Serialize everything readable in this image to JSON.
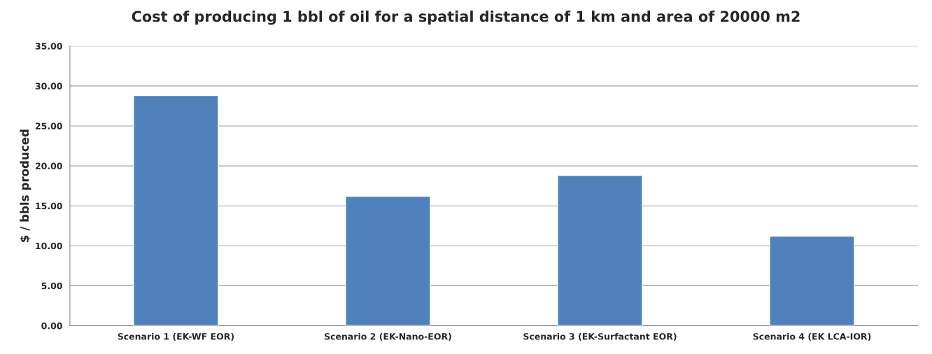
{
  "chart_data": {
    "type": "bar",
    "title": "Cost of producing 1 bbl of oil for a spatial distance of 1 km and area of 20000 m2",
    "ylabel": "$ / bbls produced",
    "categories": [
      "Scenario 1 (EK-WF EOR)",
      "Scenario 2 (EK-Nano-EOR)",
      "Scenario 3 (EK-Surfactant EOR)",
      "Scenario 4 (EK LCA-IOR)"
    ],
    "values": [
      28.8,
      16.2,
      18.8,
      11.2
    ],
    "color": "#4f81bd",
    "ylim": [
      0,
      35
    ],
    "yticks": [
      {
        "value": 0,
        "label": "0.00"
      },
      {
        "value": 5,
        "label": "5.00"
      },
      {
        "value": 10,
        "label": "10.00"
      },
      {
        "value": 15,
        "label": "15.00"
      },
      {
        "value": 20,
        "label": "20.00"
      },
      {
        "value": 25,
        "label": "25.00"
      },
      {
        "value": 30,
        "label": "30.00"
      },
      {
        "value": 35,
        "label": "35.00"
      }
    ],
    "grid": "y"
  }
}
